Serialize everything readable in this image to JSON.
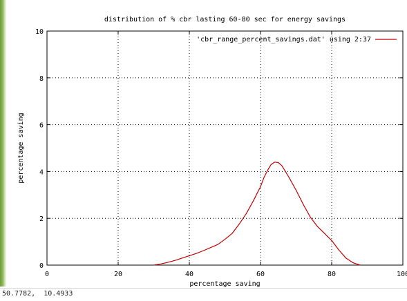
{
  "chart_data": {
    "type": "line",
    "title": "distribution of % cbr lasting 60-80 sec for energy savings",
    "xlabel": "percentage saving",
    "ylabel": "percentage saving",
    "xlim": [
      0,
      100
    ],
    "ylim": [
      0,
      10
    ],
    "xticks": [
      0,
      20,
      40,
      60,
      80,
      100
    ],
    "yticks": [
      0,
      2,
      4,
      6,
      8,
      10
    ],
    "grid": true,
    "legend_position": "top-right",
    "series": [
      {
        "name": "'cbr_range_percent_savings.dat' using 2:37",
        "color": "#c00000",
        "x": [
          30,
          32,
          34,
          36,
          38,
          40,
          42,
          44,
          46,
          48,
          50,
          52,
          54,
          56,
          58,
          60,
          61,
          62,
          63,
          64,
          65,
          66,
          67,
          68,
          70,
          72,
          74,
          76,
          78,
          80,
          82,
          84,
          86,
          88
        ],
        "y": [
          0.0,
          0.05,
          0.12,
          0.2,
          0.3,
          0.4,
          0.5,
          0.62,
          0.75,
          0.88,
          1.1,
          1.35,
          1.75,
          2.2,
          2.75,
          3.35,
          3.75,
          4.05,
          4.3,
          4.4,
          4.38,
          4.25,
          4.0,
          3.75,
          3.2,
          2.6,
          2.05,
          1.65,
          1.35,
          1.05,
          0.65,
          0.3,
          0.1,
          0.0
        ]
      }
    ]
  },
  "status": {
    "coords": "50.7782,  10.4933"
  }
}
